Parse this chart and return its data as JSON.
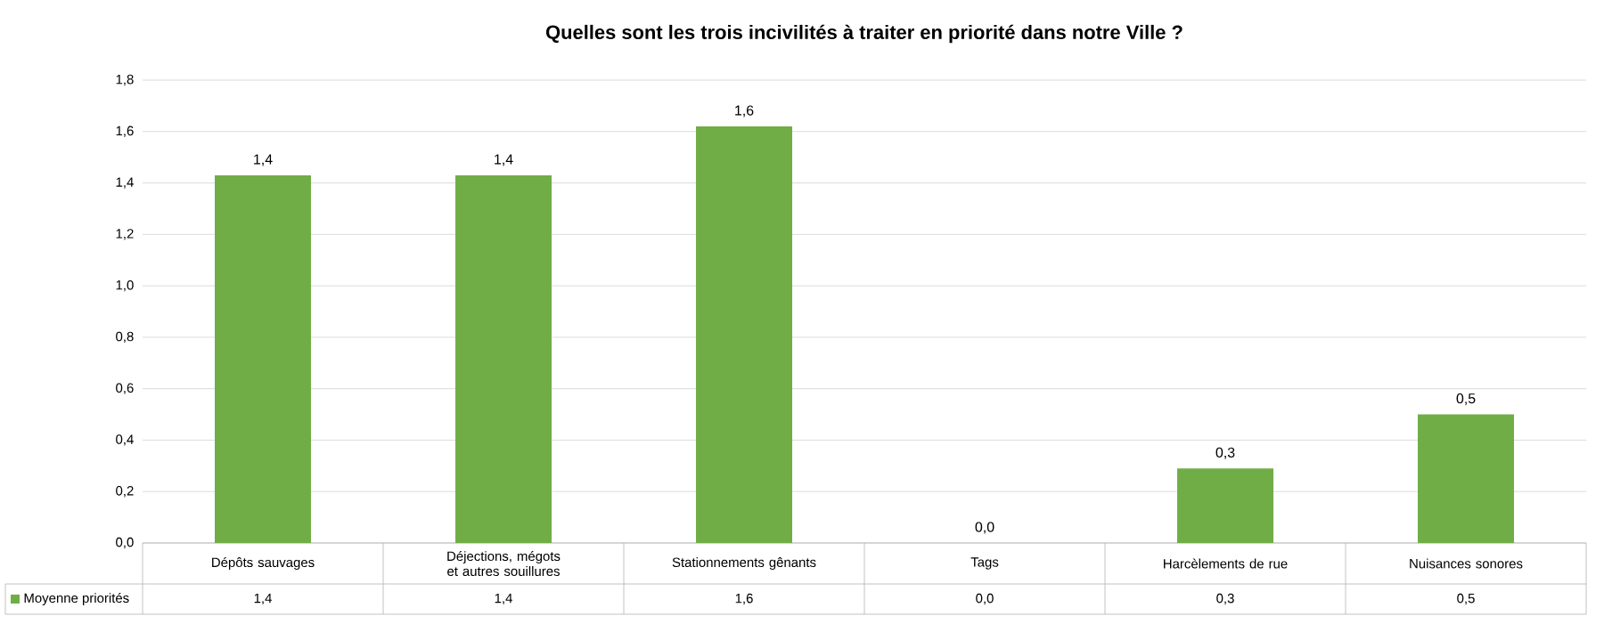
{
  "chart_data": {
    "type": "bar",
    "title": "Quelles sont les trois incivilités à traiter en priorité dans notre Ville ?",
    "categories": [
      "Dépôts sauvages",
      "Déjections, mégots et autres souillures",
      "Stationnements gênants",
      "Tags",
      "Harcèlements de rue",
      "Nuisances sonores"
    ],
    "series": [
      {
        "name": "Moyenne priorités",
        "color": "#70ad47",
        "values": [
          1.43,
          1.43,
          1.62,
          0.0,
          0.29,
          0.5
        ],
        "value_labels": [
          "1,4",
          "1,4",
          "1,6",
          "0,0",
          "0,3",
          "0,5"
        ]
      }
    ],
    "ylim": [
      0,
      1.8
    ],
    "yticks": [
      {
        "value": 0,
        "label": "0,0"
      },
      {
        "value": 0.2,
        "label": "0,2"
      },
      {
        "value": 0.4,
        "label": "0,4"
      },
      {
        "value": 0.6,
        "label": "0,6"
      },
      {
        "value": 0.8,
        "label": "0,8"
      },
      {
        "value": 1.0,
        "label": "1,0"
      },
      {
        "value": 1.2,
        "label": "1,2"
      },
      {
        "value": 1.4,
        "label": "1,4"
      },
      {
        "value": 1.6,
        "label": "1,6"
      },
      {
        "value": 1.8,
        "label": "1,8"
      }
    ],
    "grid": "y",
    "legend": "bottom"
  }
}
